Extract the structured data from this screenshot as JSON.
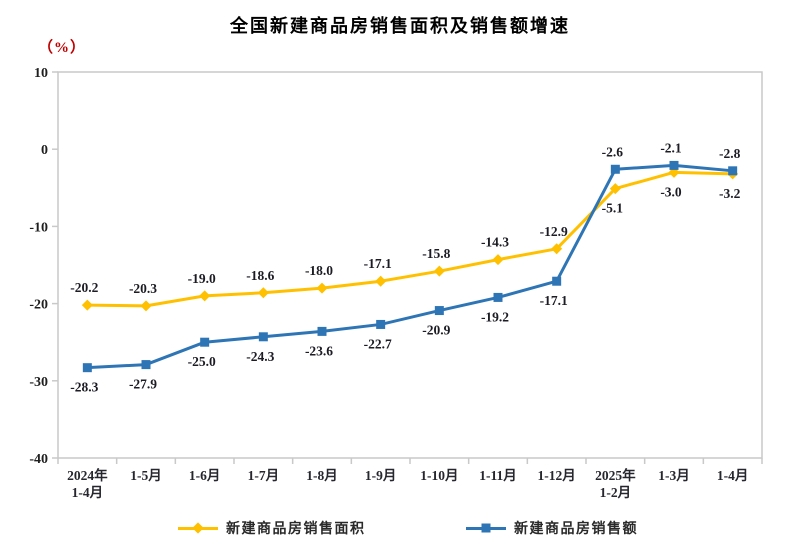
{
  "chart_data": {
    "type": "line",
    "title": "全国新建商品房销售面积及销售额增速",
    "unit_label": "（%）",
    "unit_label_color": "#c00000",
    "categories": [
      "2024年\n1-4月",
      "1-5月",
      "1-6月",
      "1-7月",
      "1-8月",
      "1-9月",
      "1-10月",
      "1-11月",
      "1-12月",
      "2025年\n1-2月",
      "1-3月",
      "1-4月"
    ],
    "series": [
      {
        "name": "新建商品房销售面积",
        "color": "#FFC000",
        "marker": "diamond",
        "values": [
          -20.2,
          -20.3,
          -19.0,
          -18.6,
          -18.0,
          -17.1,
          -15.8,
          -14.3,
          -12.9,
          -5.1,
          -3.0,
          -3.2
        ],
        "labels": [
          "-20.2",
          "-20.3",
          "-19.0",
          "-18.6",
          "-18.0",
          "-17.1",
          "-15.8",
          "-14.3",
          "-12.9",
          "-5.1",
          "-3.0",
          "-3.2"
        ],
        "label_positions": [
          "above",
          "above",
          "above",
          "above",
          "above",
          "above",
          "above",
          "above",
          "above",
          "below",
          "below",
          "below"
        ]
      },
      {
        "name": "新建商品房销售额",
        "color": "#2E75B6",
        "marker": "square",
        "values": [
          -28.3,
          -27.9,
          -25.0,
          -24.3,
          -23.6,
          -22.7,
          -20.9,
          -19.2,
          -17.1,
          -2.6,
          -2.1,
          -2.8
        ],
        "labels": [
          "-28.3",
          "-27.9",
          "-25.0",
          "-24.3",
          "-23.6",
          "-22.7",
          "-20.9",
          "-19.2",
          "-17.1",
          "-2.6",
          "-2.1",
          "-2.8"
        ],
        "label_positions": [
          "below",
          "below",
          "below",
          "below",
          "below",
          "below",
          "below",
          "below",
          "below",
          "above",
          "above",
          "above"
        ]
      }
    ],
    "ylim": [
      -40,
      10
    ],
    "ytick_step": 10,
    "grid": false,
    "legend_position": "bottom",
    "axis_color": "#c9c9c9",
    "xlabel": "",
    "ylabel": ""
  }
}
